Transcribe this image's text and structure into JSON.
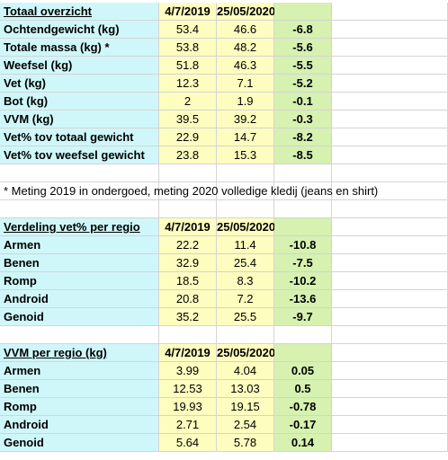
{
  "colors": {
    "label_bg": "#cff7f9",
    "value_bg": "#fdfdbf",
    "diff_bg": "#d6f1b0",
    "grid": "#d4d4d4"
  },
  "sections": [
    {
      "title": "Totaal overzicht",
      "date1": "4/7/2019",
      "date2": "25/05/2020",
      "rows": [
        {
          "label": "Ochtendgewicht (kg)",
          "v1": "53.4",
          "v2": "46.6",
          "diff": "-6.8"
        },
        {
          "label": "Totale massa (kg) *",
          "v1": "53.8",
          "v2": "48.2",
          "diff": "-5.6"
        },
        {
          "label": "Weefsel (kg)",
          "v1": "51.8",
          "v2": "46.3",
          "diff": "-5.5"
        },
        {
          "label": "Vet (kg)",
          "v1": "12.3",
          "v2": "7.1",
          "diff": "-5.2"
        },
        {
          "label": "Bot (kg)",
          "v1": "2",
          "v2": "1.9",
          "diff": "-0.1"
        },
        {
          "label": "VVM (kg)",
          "v1": "39.5",
          "v2": "39.2",
          "diff": "-0.3"
        },
        {
          "label": "Vet% tov totaal gewicht",
          "v1": "22.9",
          "v2": "14.7",
          "diff": "-8.2"
        },
        {
          "label": "Vet% tov weefsel gewicht",
          "v1": "23.8",
          "v2": "15.3",
          "diff": "-8.5"
        }
      ]
    },
    {
      "title": "Verdeling vet% per regio",
      "date1": "4/7/2019",
      "date2": "25/05/2020",
      "rows": [
        {
          "label": "Armen",
          "v1": "22.2",
          "v2": "11.4",
          "diff": "-10.8"
        },
        {
          "label": "Benen",
          "v1": "32.9",
          "v2": "25.4",
          "diff": "-7.5"
        },
        {
          "label": "Romp",
          "v1": "18.5",
          "v2": "8.3",
          "diff": "-10.2"
        },
        {
          "label": "Android",
          "v1": "20.8",
          "v2": "7.2",
          "diff": "-13.6"
        },
        {
          "label": "Genoid",
          "v1": "35.2",
          "v2": "25.5",
          "diff": "-9.7"
        }
      ]
    },
    {
      "title": "VVM per regio (kg)",
      "date1": "4/7/2019",
      "date2": "25/05/2020",
      "rows": [
        {
          "label": "Armen",
          "v1": "3.99",
          "v2": "4.04",
          "diff": "0.05"
        },
        {
          "label": "Benen",
          "v1": "12.53",
          "v2": "13.03",
          "diff": "0.5"
        },
        {
          "label": "Romp",
          "v1": "19.93",
          "v2": "19.15",
          "diff": "-0.78"
        },
        {
          "label": "Android",
          "v1": "2.71",
          "v2": "2.54",
          "diff": "-0.17"
        },
        {
          "label": "Genoid",
          "v1": "5.64",
          "v2": "5.78",
          "diff": "0.14"
        }
      ]
    }
  ],
  "note": "* Meting 2019 in ondergoed, meting 2020 volledige kledij (jeans en shirt)"
}
